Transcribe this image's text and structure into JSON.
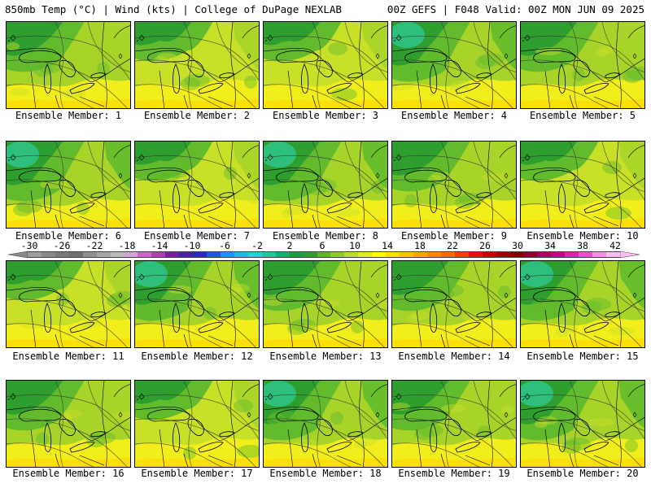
{
  "header": {
    "left_title": "850mb Temp (°C) | Wind (kts) | College of DuPage NEXLAB",
    "right_title": "00Z GEFS | F048 Valid: 00Z MON JUN 09 2025"
  },
  "members": [
    {
      "label": "Ensemble Member: 1",
      "tint": "mid"
    },
    {
      "label": "Ensemble Member: 2",
      "tint": "warm"
    },
    {
      "label": "Ensemble Member: 3",
      "tint": "warm"
    },
    {
      "label": "Ensemble Member: 4",
      "tint": "cold"
    },
    {
      "label": "Ensemble Member: 5",
      "tint": "mid"
    },
    {
      "label": "Ensemble Member: 6",
      "tint": "cold"
    },
    {
      "label": "Ensemble Member: 7",
      "tint": "warm"
    },
    {
      "label": "Ensemble Member: 8",
      "tint": "cold"
    },
    {
      "label": "Ensemble Member: 9",
      "tint": "mid"
    },
    {
      "label": "Ensemble Member: 10",
      "tint": "warm"
    },
    {
      "label": "Ensemble Member: 11",
      "tint": "warm"
    },
    {
      "label": "Ensemble Member: 12",
      "tint": "cold"
    },
    {
      "label": "Ensemble Member: 13",
      "tint": "mid"
    },
    {
      "label": "Ensemble Member: 14",
      "tint": "mid"
    },
    {
      "label": "Ensemble Member: 15",
      "tint": "cold"
    },
    {
      "label": "Ensemble Member: 16",
      "tint": "mid"
    },
    {
      "label": "Ensemble Member: 17",
      "tint": "warm"
    },
    {
      "label": "Ensemble Member: 18",
      "tint": "cold"
    },
    {
      "label": "Ensemble Member: 19",
      "tint": "mid"
    },
    {
      "label": "Ensemble Member: 20",
      "tint": "cold"
    }
  ],
  "colorbar": {
    "labels": [
      "-30",
      "-26",
      "-22",
      "-18",
      "-14",
      "-10",
      "-6",
      "-2",
      "2",
      "6",
      "10",
      "14",
      "18",
      "22",
      "26",
      "30",
      "34",
      "38",
      "42"
    ],
    "colors": [
      "#9e9e9e",
      "#8a8a8a",
      "#7a7a7a",
      "#6e6e6e",
      "#8f8f8f",
      "#a6a6a6",
      "#bcbcbc",
      "#d6a3d6",
      "#cc66cc",
      "#b03fb0",
      "#7a1fa2",
      "#4b1fa8",
      "#2b2bb8",
      "#1e5ae0",
      "#1e90ff",
      "#22b8e8",
      "#22d4d4",
      "#20c8a0",
      "#18b070",
      "#18a040",
      "#2e9e2e",
      "#5cb82a",
      "#8ccc2a",
      "#b8dc2a",
      "#e0ea20",
      "#ffff00",
      "#ffe000",
      "#ffc400",
      "#ffa500",
      "#ff8800",
      "#ff6a00",
      "#ff3c00",
      "#e81010",
      "#cc0000",
      "#a00000",
      "#800000",
      "#900030",
      "#b00060",
      "#cc0088",
      "#e020b0",
      "#f050d0",
      "#f890e8",
      "#fcc0f0"
    ]
  },
  "palette": {
    "cold": "#1fa35a",
    "green": "#2e9e2e",
    "lightgreen": "#62bb2c",
    "yellowgreen": "#a8d42a",
    "lime": "#c8e028",
    "yellow": "#f2ee1c",
    "gold": "#ffd800",
    "teal": "#2ec48a"
  }
}
